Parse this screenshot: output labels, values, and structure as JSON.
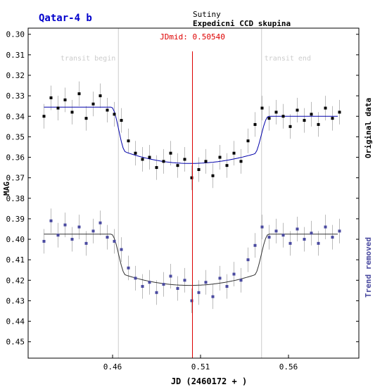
{
  "header": {
    "title": "Qatar-4 b",
    "observatory": "Sutiny",
    "group": "Expedicni CCD skupina"
  },
  "chart_data": {
    "type": "scatter",
    "xlabel": "JD (2460172 + )",
    "ylabel": "MAG",
    "xlim": [
      0.412,
      0.6
    ],
    "ylim": [
      0.297,
      0.458
    ],
    "y_inverted": true,
    "xticks": [
      0.46,
      0.51,
      0.56
    ],
    "xtick_labels": [
      "0.46",
      "0.51",
      "0.56"
    ],
    "yticks": [
      0.3,
      0.31,
      0.32,
      0.33,
      0.34,
      0.35,
      0.36,
      0.37,
      0.38,
      0.39,
      0.4,
      0.41,
      0.42,
      0.43,
      0.44,
      0.45
    ],
    "ytick_labels": [
      "0.30",
      "0.31",
      "0.32",
      "0.33",
      "0.34",
      "0.35",
      "0.36",
      "0.37",
      "0.38",
      "0.39",
      "0.40",
      "0.41",
      "0.42",
      "0.43",
      "0.44",
      "0.45"
    ],
    "grid": false,
    "transit_begin": {
      "x": 0.4633,
      "label": "transit begin"
    },
    "transit_end": {
      "x": 0.5447,
      "label": "transit end"
    },
    "jdmid": {
      "x": 0.5054,
      "label": "JDmid: 0.50540"
    },
    "series": [
      {
        "name": "Original data",
        "point_color": "#000000",
        "model_color": "#0000aa",
        "error_color": "#bbbbbb",
        "baseline_pre": 0.3355,
        "baseline_post": 0.34,
        "depth_level": 0.363,
        "x": [
          0.421,
          0.425,
          0.429,
          0.433,
          0.437,
          0.441,
          0.445,
          0.449,
          0.453,
          0.457,
          0.461,
          0.465,
          0.469,
          0.473,
          0.477,
          0.481,
          0.485,
          0.489,
          0.493,
          0.497,
          0.501,
          0.505,
          0.509,
          0.513,
          0.517,
          0.521,
          0.525,
          0.529,
          0.533,
          0.537,
          0.541,
          0.545,
          0.549,
          0.553,
          0.557,
          0.561,
          0.565,
          0.569,
          0.573,
          0.577,
          0.581,
          0.585,
          0.589
        ],
        "y": [
          0.34,
          0.331,
          0.336,
          0.332,
          0.338,
          0.329,
          0.341,
          0.334,
          0.33,
          0.337,
          0.339,
          0.342,
          0.352,
          0.358,
          0.361,
          0.36,
          0.365,
          0.362,
          0.358,
          0.364,
          0.361,
          0.37,
          0.366,
          0.362,
          0.369,
          0.36,
          0.364,
          0.358,
          0.362,
          0.352,
          0.344,
          0.336,
          0.341,
          0.338,
          0.34,
          0.345,
          0.337,
          0.342,
          0.339,
          0.344,
          0.336,
          0.341,
          0.338
        ]
      },
      {
        "name": "Trend removed",
        "point_color": "#4a4aa0",
        "model_color": "#333333",
        "error_color": "#bbbbbb",
        "baseline_pre": 0.3975,
        "baseline_post": 0.3975,
        "depth_level": 0.4225,
        "x": [
          0.421,
          0.425,
          0.429,
          0.433,
          0.437,
          0.441,
          0.445,
          0.449,
          0.453,
          0.457,
          0.461,
          0.465,
          0.469,
          0.473,
          0.477,
          0.481,
          0.485,
          0.489,
          0.493,
          0.497,
          0.501,
          0.505,
          0.509,
          0.513,
          0.517,
          0.521,
          0.525,
          0.529,
          0.533,
          0.537,
          0.541,
          0.545,
          0.549,
          0.553,
          0.557,
          0.561,
          0.565,
          0.569,
          0.573,
          0.577,
          0.581,
          0.585,
          0.589
        ],
        "y": [
          0.401,
          0.391,
          0.398,
          0.393,
          0.4,
          0.394,
          0.402,
          0.396,
          0.392,
          0.399,
          0.401,
          0.405,
          0.414,
          0.419,
          0.423,
          0.421,
          0.426,
          0.422,
          0.418,
          0.424,
          0.42,
          0.43,
          0.426,
          0.421,
          0.428,
          0.419,
          0.423,
          0.417,
          0.42,
          0.41,
          0.403,
          0.394,
          0.399,
          0.396,
          0.398,
          0.402,
          0.395,
          0.4,
          0.397,
          0.402,
          0.394,
          0.399,
          0.396
        ]
      }
    ]
  }
}
